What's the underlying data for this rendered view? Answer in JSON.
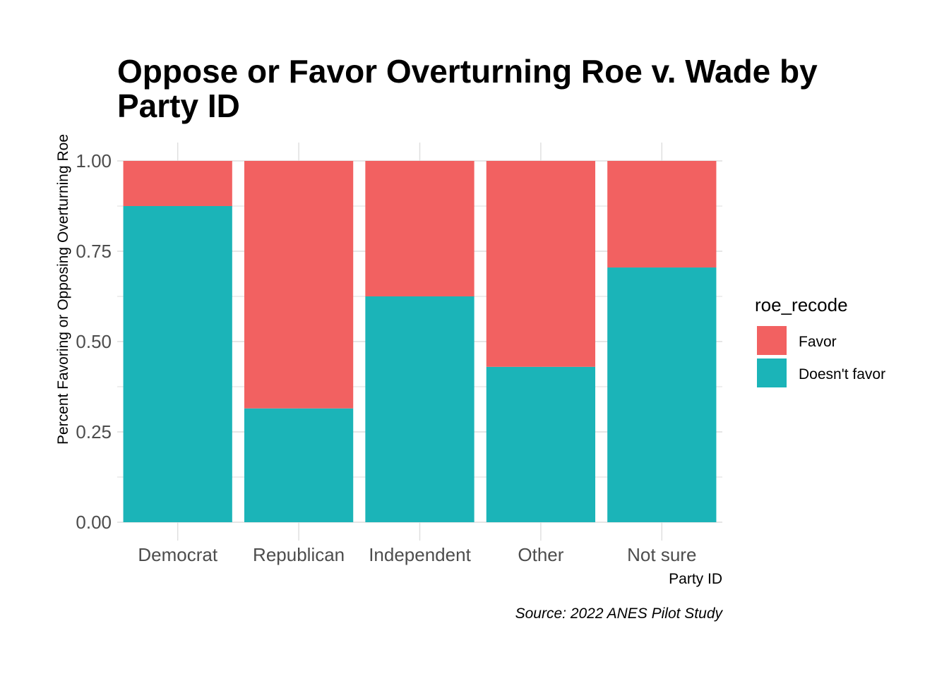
{
  "chart_data": {
    "type": "bar",
    "stacked": true,
    "title": "Oppose or Favor Overturning Roe v. Wade by Party ID",
    "title_lines": [
      "Oppose or Favor Overturning Roe v. Wade by",
      "Party ID"
    ],
    "xlabel": "Party ID",
    "ylabel": "Percent Favoring or Opposing Overturning Roe",
    "caption": "Source: 2022 ANES Pilot Study",
    "categories": [
      "Democrat",
      "Republican",
      "Independent",
      "Other",
      "Not sure"
    ],
    "series": [
      {
        "name": "Favor",
        "color": "#F26161",
        "values": [
          0.125,
          0.685,
          0.375,
          0.57,
          0.295
        ]
      },
      {
        "name": "Doesn't favor",
        "color": "#1BB4B8",
        "values": [
          0.875,
          0.315,
          0.625,
          0.43,
          0.705
        ]
      }
    ],
    "ylim": [
      0,
      1
    ],
    "yticks": [
      "0.00",
      "0.25",
      "0.50",
      "0.75",
      "1.00"
    ],
    "ytick_values": [
      0,
      0.25,
      0.5,
      0.75,
      1.0
    ],
    "legend": {
      "title": "roe_recode",
      "position": "right",
      "entries": [
        "Favor",
        "Doesn't favor"
      ]
    },
    "grid": true,
    "grid_color": "#DEDEDE"
  }
}
